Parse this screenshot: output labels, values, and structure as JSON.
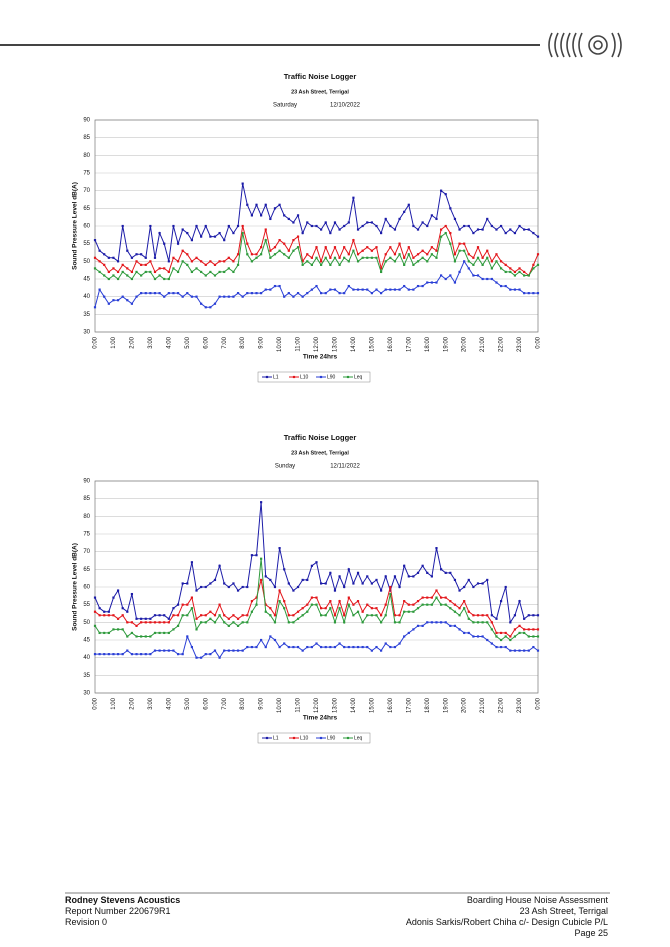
{
  "chart_data": [
    {
      "type": "line",
      "title": "Traffic Noise Logger",
      "subtitle": "23 Ash Street, Terrigal",
      "day": "Saturday",
      "date": "12/10/2022",
      "x_label": "Time 24hrs",
      "y_label": "Sound Pressure Level dB(A)",
      "ylim": [
        30,
        90
      ],
      "yticks": [
        30,
        35,
        40,
        45,
        50,
        55,
        60,
        65,
        70,
        75,
        80,
        85,
        90
      ],
      "grid": true,
      "categories": [
        "0:00",
        null,
        null,
        null,
        "1:00",
        null,
        null,
        null,
        "2:00",
        null,
        null,
        null,
        "3:00",
        null,
        null,
        null,
        "4:00",
        null,
        null,
        null,
        "5:00",
        null,
        null,
        null,
        "6:00",
        null,
        null,
        null,
        "7:00",
        null,
        null,
        null,
        "8:00",
        null,
        null,
        null,
        "9:00",
        null,
        null,
        null,
        "10:00",
        null,
        null,
        null,
        "11:00",
        null,
        null,
        null,
        "12:00",
        null,
        null,
        null,
        "13:00",
        null,
        null,
        null,
        "14:00",
        null,
        null,
        null,
        "15:00",
        null,
        null,
        null,
        "16:00",
        null,
        null,
        null,
        "17:00",
        null,
        null,
        null,
        "18:00",
        null,
        null,
        null,
        "19:00",
        null,
        null,
        null,
        "20:00",
        null,
        null,
        null,
        "21:00",
        null,
        null,
        null,
        "22:00",
        null,
        null,
        null,
        "23:00",
        null,
        null,
        null,
        "0:00"
      ],
      "series": [
        {
          "name": "L1",
          "color": "#1c1ca8",
          "values": [
            56,
            53,
            52,
            51,
            51,
            50,
            60,
            53,
            51,
            52,
            52,
            51,
            60,
            51,
            58,
            55,
            50,
            60,
            55,
            59,
            58,
            56,
            60,
            57,
            60,
            57,
            57,
            58,
            56,
            60,
            58,
            60,
            72,
            66,
            63,
            66,
            63,
            66,
            62,
            65,
            66,
            63,
            62,
            61,
            63,
            58,
            61,
            60,
            60,
            59,
            61,
            58,
            61,
            59,
            60,
            61,
            68,
            59,
            60,
            61,
            61,
            60,
            58,
            62,
            60,
            59,
            62,
            64,
            66,
            60,
            59,
            61,
            60,
            63,
            62,
            70,
            69,
            65,
            62,
            59,
            60,
            60,
            58,
            59,
            59,
            62,
            60,
            59,
            60,
            58,
            59,
            58,
            60,
            59,
            59,
            58,
            57
          ]
        },
        {
          "name": "L10",
          "color": "#e3161b",
          "values": [
            51,
            50,
            49,
            47,
            48,
            47,
            49,
            48,
            47,
            50,
            49,
            49,
            50,
            47,
            48,
            48,
            47,
            51,
            50,
            53,
            52,
            50,
            51,
            50,
            49,
            50,
            49,
            50,
            50,
            51,
            50,
            52,
            60,
            55,
            52,
            52,
            54,
            59,
            53,
            54,
            56,
            55,
            53,
            56,
            57,
            50,
            52,
            51,
            54,
            50,
            54,
            51,
            54,
            51,
            54,
            52,
            56,
            52,
            53,
            54,
            53,
            54,
            48,
            52,
            54,
            52,
            55,
            51,
            54,
            51,
            52,
            53,
            52,
            54,
            53,
            59,
            60,
            58,
            52,
            55,
            55,
            52,
            51,
            54,
            51,
            53,
            50,
            52,
            50,
            49,
            48,
            47,
            48,
            47,
            46,
            49,
            52
          ]
        },
        {
          "name": "L90",
          "color": "#2a3fd6",
          "values": [
            37,
            42,
            40,
            38,
            39,
            39,
            40,
            39,
            38,
            40,
            41,
            41,
            41,
            41,
            41,
            40,
            41,
            41,
            41,
            40,
            41,
            40,
            40,
            38,
            37,
            37,
            38,
            40,
            40,
            40,
            40,
            41,
            40,
            41,
            41,
            41,
            41,
            42,
            42,
            43,
            43,
            40,
            41,
            40,
            41,
            40,
            41,
            42,
            43,
            41,
            41,
            42,
            42,
            41,
            41,
            43,
            42,
            42,
            42,
            42,
            41,
            42,
            41,
            42,
            42,
            42,
            42,
            43,
            42,
            42,
            43,
            43,
            44,
            44,
            44,
            46,
            45,
            46,
            44,
            47,
            50,
            48,
            46,
            46,
            45,
            45,
            45,
            44,
            43,
            43,
            42,
            42,
            42,
            41,
            41,
            41,
            41
          ]
        },
        {
          "name": "Leq",
          "color": "#2e9a3c",
          "values": [
            48,
            47,
            46,
            45,
            46,
            45,
            47,
            46,
            45,
            47,
            46,
            47,
            47,
            45,
            46,
            45,
            45,
            48,
            47,
            50,
            49,
            47,
            48,
            47,
            46,
            47,
            46,
            47,
            47,
            48,
            47,
            49,
            58,
            52,
            50,
            51,
            52,
            56,
            51,
            52,
            53,
            52,
            51,
            53,
            54,
            49,
            50,
            49,
            51,
            49,
            51,
            49,
            51,
            49,
            51,
            50,
            53,
            50,
            51,
            51,
            51,
            51,
            47,
            50,
            51,
            50,
            52,
            49,
            52,
            49,
            50,
            51,
            50,
            52,
            51,
            57,
            58,
            55,
            50,
            53,
            53,
            50,
            49,
            51,
            49,
            51,
            48,
            50,
            48,
            47,
            47,
            46,
            47,
            46,
            46,
            48,
            49
          ]
        }
      ]
    },
    {
      "type": "line",
      "title": "Traffic Noise Logger",
      "subtitle": "23 Ash Street, Terrigal",
      "day": "Sunday",
      "date": "12/11/2022",
      "x_label": "Time 24hrs",
      "y_label": "Sound Pressure Level dB(A)",
      "ylim": [
        30,
        90
      ],
      "yticks": [
        30,
        35,
        40,
        45,
        50,
        55,
        60,
        65,
        70,
        75,
        80,
        85,
        90
      ],
      "grid": true,
      "categories": [
        "0:00",
        null,
        null,
        null,
        "1:00",
        null,
        null,
        null,
        "2:00",
        null,
        null,
        null,
        "3:00",
        null,
        null,
        null,
        "4:00",
        null,
        null,
        null,
        "5:00",
        null,
        null,
        null,
        "6:00",
        null,
        null,
        null,
        "7:00",
        null,
        null,
        null,
        "8:00",
        null,
        null,
        null,
        "9:00",
        null,
        null,
        null,
        "10:00",
        null,
        null,
        null,
        "11:00",
        null,
        null,
        null,
        "12:00",
        null,
        null,
        null,
        "13:00",
        null,
        null,
        null,
        "14:00",
        null,
        null,
        null,
        "15:00",
        null,
        null,
        null,
        "16:00",
        null,
        null,
        null,
        "17:00",
        null,
        null,
        null,
        "18:00",
        null,
        null,
        null,
        "19:00",
        null,
        null,
        null,
        "20:00",
        null,
        null,
        null,
        "21:00",
        null,
        null,
        null,
        "22:00",
        null,
        null,
        null,
        "23:00",
        null,
        null,
        null,
        "0:00"
      ],
      "series": [
        {
          "name": "L1",
          "color": "#1c1ca8",
          "values": [
            57,
            54,
            53,
            53,
            57,
            59,
            54,
            53,
            58,
            51,
            51,
            51,
            51,
            52,
            52,
            52,
            51,
            54,
            55,
            61,
            61,
            67,
            59,
            60,
            60,
            61,
            62,
            66,
            61,
            60,
            61,
            59,
            60,
            60,
            69,
            69,
            84,
            63,
            62,
            60,
            71,
            65,
            61,
            59,
            60,
            62,
            62,
            66,
            67,
            61,
            61,
            64,
            59,
            63,
            60,
            65,
            61,
            64,
            61,
            63,
            61,
            62,
            59,
            63,
            59,
            63,
            60,
            66,
            63,
            63,
            64,
            66,
            64,
            63,
            71,
            65,
            64,
            64,
            62,
            59,
            60,
            62,
            60,
            61,
            61,
            62,
            52,
            51,
            56,
            60,
            50,
            52,
            56,
            51,
            52,
            52,
            52
          ]
        },
        {
          "name": "L10",
          "color": "#e3161b",
          "values": [
            53,
            52,
            52,
            52,
            52,
            51,
            52,
            50,
            50,
            49,
            50,
            50,
            50,
            50,
            50,
            50,
            50,
            52,
            52,
            55,
            55,
            57,
            51,
            52,
            52,
            53,
            52,
            55,
            52,
            51,
            52,
            51,
            52,
            52,
            56,
            57,
            62,
            55,
            54,
            52,
            59,
            56,
            52,
            52,
            53,
            54,
            55,
            57,
            57,
            54,
            54,
            56,
            52,
            56,
            52,
            57,
            55,
            56,
            53,
            55,
            54,
            54,
            52,
            55,
            60,
            52,
            52,
            56,
            55,
            55,
            56,
            57,
            57,
            57,
            59,
            57,
            57,
            56,
            55,
            54,
            56,
            53,
            52,
            52,
            52,
            52,
            50,
            47,
            47,
            47,
            46,
            48,
            49,
            48,
            48,
            48,
            48
          ]
        },
        {
          "name": "L90",
          "color": "#2a3fd6",
          "values": [
            41,
            41,
            41,
            41,
            41,
            41,
            41,
            42,
            41,
            41,
            41,
            41,
            41,
            42,
            42,
            42,
            42,
            42,
            41,
            41,
            46,
            43,
            40,
            40,
            41,
            41,
            42,
            40,
            42,
            42,
            42,
            42,
            42,
            43,
            43,
            43,
            45,
            43,
            46,
            45,
            43,
            44,
            43,
            43,
            43,
            42,
            43,
            43,
            44,
            43,
            43,
            43,
            43,
            44,
            43,
            43,
            43,
            43,
            43,
            43,
            42,
            43,
            42,
            44,
            43,
            43,
            44,
            46,
            47,
            48,
            49,
            49,
            50,
            50,
            50,
            50,
            50,
            49,
            49,
            48,
            47,
            47,
            46,
            46,
            46,
            45,
            44,
            43,
            43,
            43,
            42,
            42,
            42,
            42,
            42,
            43,
            42
          ]
        },
        {
          "name": "Leq",
          "color": "#2e9a3c",
          "values": [
            49,
            47,
            47,
            47,
            48,
            48,
            48,
            46,
            47,
            46,
            46,
            46,
            46,
            47,
            47,
            47,
            47,
            48,
            49,
            52,
            52,
            54,
            48,
            50,
            50,
            51,
            50,
            52,
            50,
            49,
            50,
            49,
            50,
            50,
            53,
            55,
            68,
            53,
            52,
            50,
            56,
            54,
            50,
            50,
            51,
            52,
            53,
            55,
            55,
            52,
            52,
            54,
            50,
            54,
            50,
            55,
            52,
            53,
            50,
            52,
            52,
            52,
            50,
            52,
            58,
            50,
            50,
            53,
            53,
            53,
            54,
            55,
            55,
            55,
            57,
            55,
            55,
            54,
            53,
            52,
            54,
            51,
            50,
            50,
            50,
            50,
            48,
            46,
            45,
            46,
            45,
            46,
            47,
            47,
            46,
            46,
            46
          ]
        }
      ]
    }
  ],
  "footer": {
    "left": [
      "Rodney Stevens Acoustics",
      "Report Number 220679R1",
      "Revision 0"
    ],
    "right": [
      "Boarding House Noise Assessment",
      "23 Ash Street, Terrigal",
      "Adonis Sarkis/Robert Chiha c/- Design Cubicle P/L",
      "Page 25"
    ]
  }
}
